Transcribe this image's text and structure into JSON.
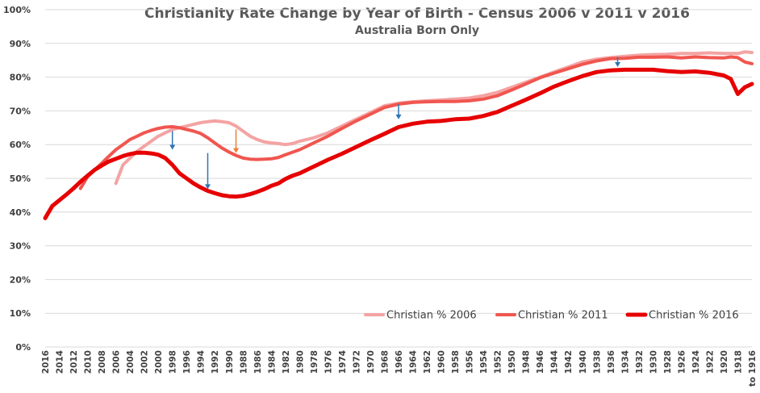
{
  "chart_data": {
    "type": "line",
    "title": "Christianity Rate Change by Year of Birth - Census 2006 v 2011 v 2016",
    "subtitle": "Australia Born Only",
    "xlabel": "",
    "ylabel": "",
    "ylim": [
      0,
      100
    ],
    "y_tick_labels": [
      "0%",
      "10%",
      "20%",
      "30%",
      "40%",
      "50%",
      "60%",
      "70%",
      "80%",
      "90%",
      "100%"
    ],
    "x_tick_labels": [
      "2016",
      "2014",
      "2012",
      "2010",
      "2008",
      "2006",
      "2004",
      "2002",
      "2000",
      "1998",
      "1996",
      "1994",
      "1992",
      "1990",
      "1988",
      "1986",
      "1984",
      "1982",
      "1980",
      "1978",
      "1976",
      "1974",
      "1972",
      "1970",
      "1968",
      "1966",
      "1964",
      "1962",
      "1960",
      "1958",
      "1956",
      "1954",
      "1952",
      "1950",
      "1948",
      "1946",
      "1944",
      "1942",
      "1940",
      "1938",
      "1936",
      "1934",
      "1932",
      "1930",
      "1928",
      "1926",
      "1924",
      "1922",
      "1920",
      "1918",
      "to 1916"
    ],
    "x_reversed": true,
    "grid": "horizontal",
    "legend_position": "bottom-right",
    "series": [
      {
        "name": "Christian % 2006",
        "color": "#f4a3a3",
        "x": [
          2006,
          2005,
          2004,
          2003,
          2002,
          2001,
          2000,
          1999,
          1998,
          1997,
          1996,
          1995,
          1994,
          1993,
          1992,
          1991,
          1990,
          1989,
          1988,
          1987,
          1986,
          1985,
          1984,
          1983,
          1982,
          1981,
          1980,
          1978,
          1976,
          1974,
          1972,
          1970,
          1968,
          1966,
          1964,
          1962,
          1960,
          1958,
          1956,
          1954,
          1952,
          1950,
          1948,
          1946,
          1944,
          1942,
          1940,
          1938,
          1936,
          1934,
          1932,
          1930,
          1928,
          1926,
          1924,
          1922,
          1920,
          1918,
          1917,
          1916
        ],
        "values": [
          48.5,
          54,
          56,
          58,
          59.5,
          61,
          62.5,
          63.5,
          64.5,
          65,
          65.5,
          66,
          66.5,
          66.8,
          67,
          66.8,
          66.5,
          65.5,
          64,
          62.5,
          61.5,
          60.8,
          60.5,
          60.3,
          60,
          60.3,
          61,
          62,
          63.5,
          65.5,
          67.5,
          69.5,
          71.5,
          72.3,
          72.7,
          73,
          73.2,
          73.5,
          73.8,
          74.5,
          75.5,
          77,
          78.5,
          80,
          81.5,
          83,
          84.5,
          85.3,
          85.8,
          86.2,
          86.5,
          86.7,
          86.8,
          87,
          87,
          87.2,
          87,
          87,
          87.5,
          87.3
        ]
      },
      {
        "name": "Christian % 2011",
        "color": "#f0564f",
        "x": [
          2011,
          2010,
          2009,
          2008,
          2007,
          2006,
          2005,
          2004,
          2003,
          2002,
          2001,
          2000,
          1999,
          1998,
          1997,
          1996,
          1995,
          1994,
          1993,
          1992,
          1991,
          1990,
          1989,
          1988,
          1987,
          1986,
          1985,
          1984,
          1983,
          1982,
          1980,
          1978,
          1976,
          1974,
          1972,
          1970,
          1968,
          1966,
          1964,
          1962,
          1960,
          1958,
          1956,
          1954,
          1952,
          1950,
          1948,
          1946,
          1944,
          1942,
          1940,
          1938,
          1936,
          1934,
          1932,
          1930,
          1928,
          1926,
          1924,
          1922,
          1920,
          1919,
          1918,
          1917,
          1916
        ],
        "values": [
          47,
          50.5,
          52.5,
          54.5,
          56.5,
          58.5,
          60,
          61.5,
          62.5,
          63.5,
          64.2,
          64.8,
          65.2,
          65.3,
          65,
          64.5,
          64,
          63.3,
          62,
          60.5,
          59,
          57.8,
          56.8,
          56,
          55.7,
          55.6,
          55.7,
          55.8,
          56.2,
          57,
          58.5,
          60.5,
          62.5,
          64.8,
          67,
          69,
          71,
          72,
          72.5,
          72.7,
          72.8,
          72.8,
          73,
          73.5,
          74.5,
          76.2,
          78,
          79.8,
          81.2,
          82.5,
          83.8,
          84.8,
          85.5,
          85.6,
          85.9,
          85.9,
          86,
          85.7,
          86,
          85.8,
          85.7,
          86,
          85.8,
          84.5,
          84
        ]
      },
      {
        "name": "Christian % 2016",
        "color": "#e60000",
        "x": [
          2016,
          2015,
          2014,
          2013,
          2012,
          2011,
          2010,
          2009,
          2008,
          2007,
          2006,
          2005,
          2004,
          2003,
          2002,
          2001,
          2000,
          1999,
          1998,
          1997,
          1996,
          1995,
          1994,
          1993,
          1992,
          1991,
          1990,
          1989,
          1988,
          1987,
          1986,
          1985,
          1984,
          1983,
          1982,
          1981,
          1980,
          1978,
          1976,
          1974,
          1972,
          1970,
          1968,
          1966,
          1964,
          1962,
          1960,
          1958,
          1956,
          1954,
          1952,
          1950,
          1948,
          1946,
          1944,
          1942,
          1940,
          1938,
          1936,
          1934,
          1932,
          1930,
          1928,
          1926,
          1924,
          1922,
          1920,
          1919,
          1918,
          1917,
          1916
        ],
        "values": [
          38.2,
          41.8,
          43.5,
          45.2,
          47,
          49,
          50.8,
          52.5,
          53.8,
          55,
          55.8,
          56.6,
          57.2,
          57.6,
          57.6,
          57.4,
          57,
          56,
          54,
          51.5,
          50,
          48.5,
          47.3,
          46.3,
          45.6,
          45,
          44.7,
          44.6,
          44.8,
          45.3,
          46,
          46.8,
          47.8,
          48.5,
          49.8,
          50.8,
          51.5,
          53.5,
          55.5,
          57.3,
          59.3,
          61.3,
          63.2,
          65.2,
          66.2,
          66.8,
          67,
          67.5,
          67.7,
          68.5,
          69.7,
          71.5,
          73.3,
          75.2,
          77.2,
          78.8,
          80.3,
          81.5,
          82,
          82.2,
          82.2,
          82.2,
          81.8,
          81.5,
          81.7,
          81.3,
          80.5,
          79.5,
          75,
          77,
          78
        ]
      }
    ],
    "annotations": [
      {
        "type": "arrow",
        "color": "#2e75b6",
        "year": 1998,
        "from": 64,
        "to": 58.5
      },
      {
        "type": "arrow",
        "color": "#2e75b6",
        "year": 1993,
        "from": 57.5,
        "to": 46.8
      },
      {
        "type": "arrow",
        "color": "#ed7d31",
        "year": 1989,
        "from": 64.5,
        "to": 57.5
      },
      {
        "type": "arrow",
        "color": "#2e75b6",
        "year": 1966,
        "from": 72,
        "to": 67.5
      },
      {
        "type": "arrow",
        "color": "#2e75b6",
        "year": 1935,
        "from": 86,
        "to": 83
      }
    ]
  }
}
